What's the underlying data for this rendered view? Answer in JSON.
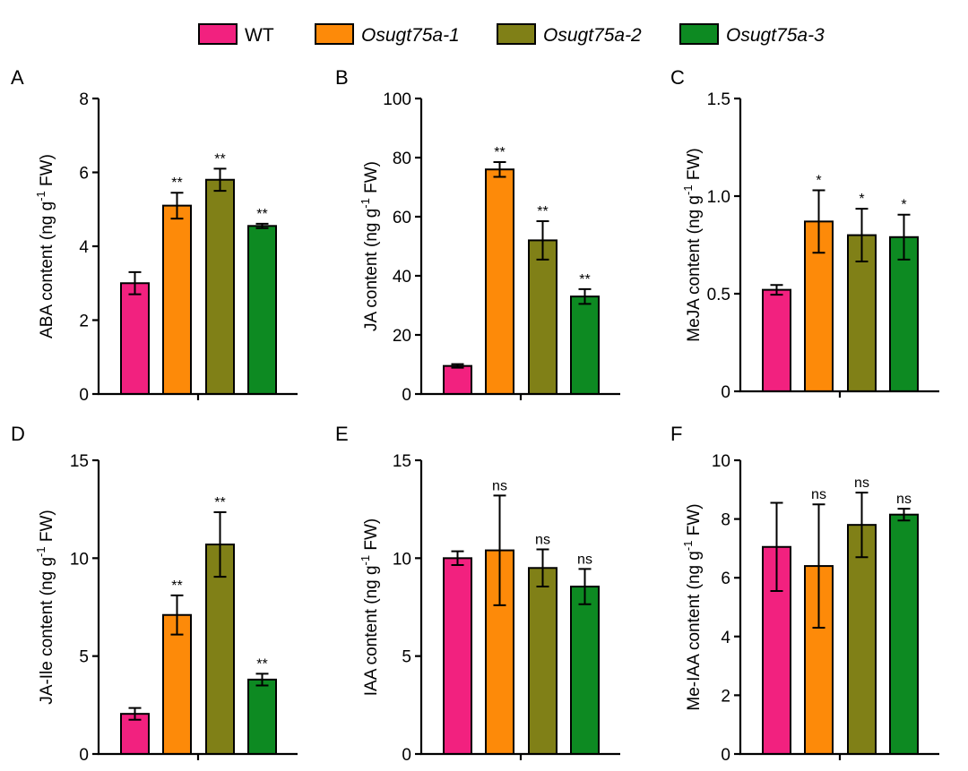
{
  "legend": [
    {
      "label": "WT",
      "italic": false,
      "color": "#f2217f"
    },
    {
      "label": "Osugt75a-1",
      "italic": true,
      "color": "#fd8a09"
    },
    {
      "label": "Osugt75a-2",
      "italic": true,
      "color": "#808017"
    },
    {
      "label": "Osugt75a-3",
      "italic": true,
      "color": "#0d8a22"
    }
  ],
  "chart_data": [
    {
      "panel": "A",
      "type": "bar",
      "ylabel_main": "ABA content (ng g",
      "ylabel_sup": "-1",
      "ylabel_tail": " FW)",
      "ylim": [
        0,
        8
      ],
      "yticks": [
        0,
        2,
        4,
        6,
        8
      ],
      "categories": [
        "WT",
        "Osugt75a-1",
        "Osugt75a-2",
        "Osugt75a-3"
      ],
      "values": [
        3.0,
        5.1,
        5.8,
        4.55
      ],
      "errors": [
        0.3,
        0.35,
        0.3,
        0.06
      ],
      "sig": [
        "",
        "**",
        "**",
        "**"
      ]
    },
    {
      "panel": "B",
      "type": "bar",
      "ylabel_main": "JA content (ng g",
      "ylabel_sup": "-1",
      "ylabel_tail": " FW)",
      "ylim": [
        0,
        100
      ],
      "yticks": [
        0,
        20,
        40,
        60,
        80,
        100
      ],
      "categories": [
        "WT",
        "Osugt75a-1",
        "Osugt75a-2",
        "Osugt75a-3"
      ],
      "values": [
        9.5,
        76,
        52,
        33
      ],
      "errors": [
        0.6,
        2.5,
        6.5,
        2.5
      ],
      "sig": [
        "",
        "**",
        "**",
        "**"
      ]
    },
    {
      "panel": "C",
      "type": "bar",
      "ylabel_main": "MeJA content (ng g",
      "ylabel_sup": "-1",
      "ylabel_tail": " FW)",
      "ylim": [
        0,
        1.5
      ],
      "yticks": [
        "0",
        "0.5",
        "1.0",
        "1.5"
      ],
      "categories": [
        "WT",
        "Osugt75a-1",
        "Osugt75a-2",
        "Osugt75a-3"
      ],
      "values": [
        0.52,
        0.87,
        0.8,
        0.79
      ],
      "errors": [
        0.025,
        0.16,
        0.135,
        0.115
      ],
      "sig": [
        "",
        "*",
        "*",
        "*"
      ]
    },
    {
      "panel": "D",
      "type": "bar",
      "ylabel_main": "JA-Ile content (ng g",
      "ylabel_sup": "-1",
      "ylabel_tail": " FW)",
      "ylim": [
        0,
        15
      ],
      "yticks": [
        0,
        5,
        10,
        15
      ],
      "categories": [
        "WT",
        "Osugt75a-1",
        "Osugt75a-2",
        "Osugt75a-3"
      ],
      "values": [
        2.05,
        7.1,
        10.7,
        3.8
      ],
      "errors": [
        0.3,
        1.0,
        1.65,
        0.3
      ],
      "sig": [
        "",
        "**",
        "**",
        "**"
      ]
    },
    {
      "panel": "E",
      "type": "bar",
      "ylabel_main": "IAA content (ng g",
      "ylabel_sup": "-1",
      "ylabel_tail": " FW)",
      "ylim": [
        0,
        15
      ],
      "yticks": [
        0,
        5,
        10,
        15
      ],
      "categories": [
        "WT",
        "Osugt75a-1",
        "Osugt75a-2",
        "Osugt75a-3"
      ],
      "values": [
        10.0,
        10.4,
        9.5,
        8.55
      ],
      "errors": [
        0.35,
        2.8,
        0.95,
        0.9
      ],
      "sig": [
        "",
        "ns",
        "ns",
        "ns"
      ]
    },
    {
      "panel": "F",
      "type": "bar",
      "ylabel_main": "Me-IAA content (ng g",
      "ylabel_sup": "-1",
      "ylabel_tail": " FW)",
      "ylim": [
        0,
        10
      ],
      "yticks": [
        0,
        2,
        4,
        6,
        8,
        10
      ],
      "categories": [
        "WT",
        "Osugt75a-1",
        "Osugt75a-2",
        "Osugt75a-3"
      ],
      "values": [
        7.05,
        6.4,
        7.8,
        8.15
      ],
      "errors": [
        1.5,
        2.1,
        1.1,
        0.2
      ],
      "sig": [
        "",
        "ns",
        "ns",
        "ns"
      ]
    }
  ]
}
